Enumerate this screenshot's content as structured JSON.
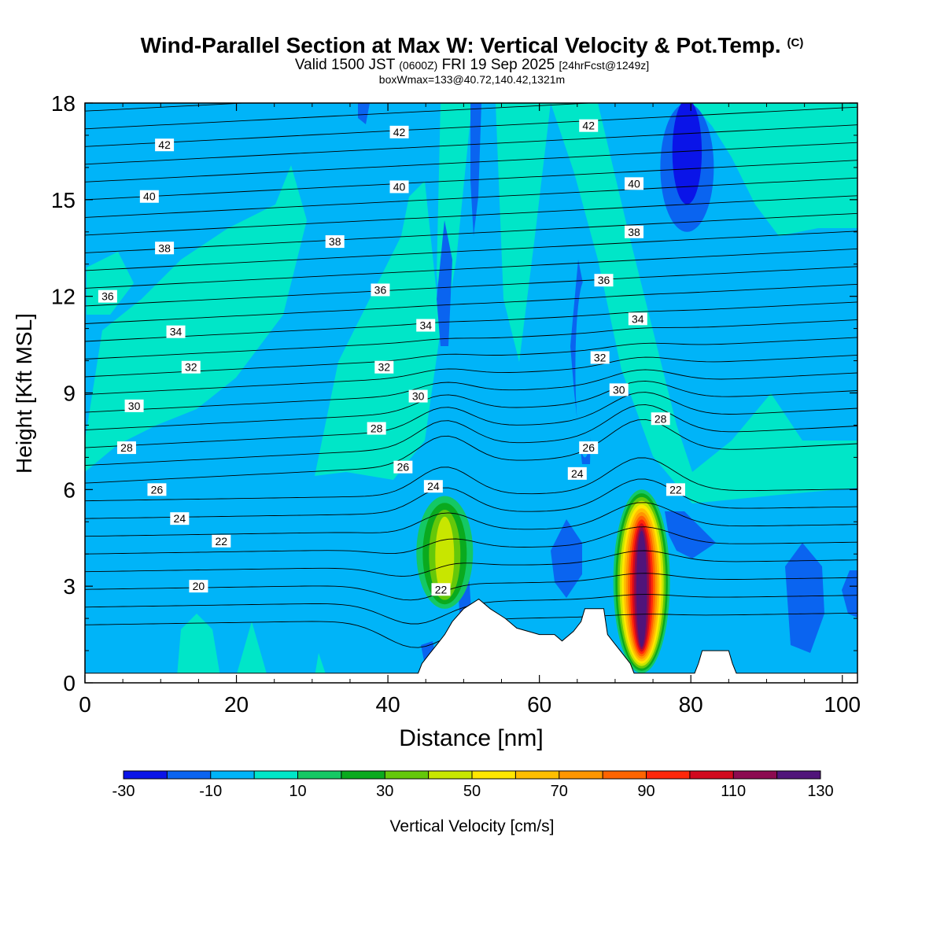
{
  "header": {
    "title_main": "Wind-Parallel Section at Max W: Vertical Velocity & Pot.Temp.",
    "title_unit": "(C)",
    "valid_prefix": "Valid 1500 JST",
    "valid_zulu": "(0600Z)",
    "valid_date": "FRI 19 Sep 2025",
    "forecast": "[24hrFcst@1249z]",
    "boxinfo": "boxWmax=133@40.72,140.42,1321m"
  },
  "colorbar": {
    "label": "Vertical Velocity [cm/s]",
    "ticks": [
      "-30",
      "-10",
      "10",
      "30",
      "50",
      "70",
      "90",
      "110",
      "130"
    ],
    "colors": [
      "#0a14e8",
      "#0a64f0",
      "#00b4f8",
      "#00e6c8",
      "#14c864",
      "#0aaa1e",
      "#64c80a",
      "#c8e600",
      "#ffe600",
      "#ffbe00",
      "#ff9600",
      "#ff6400",
      "#ff280a",
      "#d20a1e",
      "#8c0a50",
      "#50147a"
    ]
  },
  "chart_data": {
    "type": "heatmap",
    "xlabel": "Distance [nm]",
    "ylabel": "Height [Kft MSL]",
    "xlim": [
      0,
      102
    ],
    "ylim": [
      0,
      18
    ],
    "x_ticks": [
      0,
      20,
      40,
      60,
      80,
      100
    ],
    "y_ticks": [
      0,
      3,
      6,
      9,
      12,
      15,
      18
    ],
    "background_w_cms": [
      -10,
      0
    ],
    "updraft_cores": [
      {
        "x": 47.5,
        "z_bottom": 2.3,
        "z_top": 5.8,
        "w_max": 45
      },
      {
        "x": 73.5,
        "z_bottom": 0.3,
        "z_top": 6.0,
        "w_max": 133
      }
    ],
    "downdraft_cores": [
      {
        "x": 79.5,
        "z_bottom": 14.0,
        "z_top": 18.0,
        "w_min": -30
      },
      {
        "x": 66.0,
        "z_bottom": 7.0,
        "z_top": 12.5,
        "w_min": -15
      }
    ],
    "theta_contour_labels": [
      {
        "x": 15,
        "z": 3.0,
        "value": "20"
      },
      {
        "x": 18,
        "z": 4.4,
        "value": "22"
      },
      {
        "x": 47,
        "z": 2.9,
        "value": "22"
      },
      {
        "x": 12.5,
        "z": 5.1,
        "value": "24"
      },
      {
        "x": 46,
        "z": 6.1,
        "value": "24"
      },
      {
        "x": 65,
        "z": 6.5,
        "value": "24"
      },
      {
        "x": 9.5,
        "z": 6.0,
        "value": "26"
      },
      {
        "x": 42,
        "z": 6.7,
        "value": "26"
      },
      {
        "x": 66.5,
        "z": 7.3,
        "value": "26"
      },
      {
        "x": 78,
        "z": 6.0,
        "value": "22"
      },
      {
        "x": 5.5,
        "z": 7.3,
        "value": "28"
      },
      {
        "x": 38.5,
        "z": 7.9,
        "value": "28"
      },
      {
        "x": 76,
        "z": 8.2,
        "value": "28"
      },
      {
        "x": 6.5,
        "z": 8.6,
        "value": "30"
      },
      {
        "x": 44,
        "z": 8.9,
        "value": "30"
      },
      {
        "x": 70.5,
        "z": 9.1,
        "value": "30"
      },
      {
        "x": 14,
        "z": 9.8,
        "value": "32"
      },
      {
        "x": 39.5,
        "z": 9.8,
        "value": "32"
      },
      {
        "x": 68,
        "z": 10.1,
        "value": "32"
      },
      {
        "x": 12,
        "z": 10.9,
        "value": "34"
      },
      {
        "x": 45,
        "z": 11.1,
        "value": "34"
      },
      {
        "x": 73,
        "z": 11.3,
        "value": "34"
      },
      {
        "x": 3,
        "z": 12.0,
        "value": "36"
      },
      {
        "x": 39,
        "z": 12.2,
        "value": "36"
      },
      {
        "x": 68.5,
        "z": 12.5,
        "value": "36"
      },
      {
        "x": 10.5,
        "z": 13.5,
        "value": "38"
      },
      {
        "x": 33,
        "z": 13.7,
        "value": "38"
      },
      {
        "x": 72.5,
        "z": 14.0,
        "value": "38"
      },
      {
        "x": 8.5,
        "z": 15.1,
        "value": "40"
      },
      {
        "x": 41.5,
        "z": 15.4,
        "value": "40"
      },
      {
        "x": 72.5,
        "z": 15.5,
        "value": "40"
      },
      {
        "x": 10.5,
        "z": 16.7,
        "value": "42"
      },
      {
        "x": 41.5,
        "z": 17.1,
        "value": "42"
      },
      {
        "x": 66.5,
        "z": 17.3,
        "value": "42"
      }
    ],
    "terrain": [
      [
        0,
        0.3
      ],
      [
        44,
        0.3
      ],
      [
        44.5,
        0.6
      ],
      [
        45.5,
        0.9
      ],
      [
        46.5,
        1.2
      ],
      [
        47.5,
        1.5
      ],
      [
        48.5,
        1.9
      ],
      [
        50,
        2.3
      ],
      [
        52,
        2.6
      ],
      [
        53.5,
        2.3
      ],
      [
        55.5,
        2.0
      ],
      [
        57,
        1.7
      ],
      [
        60,
        1.5
      ],
      [
        62,
        1.5
      ],
      [
        63,
        1.3
      ],
      [
        64.5,
        1.6
      ],
      [
        65.5,
        1.9
      ],
      [
        66,
        2.3
      ],
      [
        68.5,
        2.3
      ],
      [
        69,
        1.5
      ],
      [
        70,
        1.2
      ],
      [
        71,
        0.9
      ],
      [
        72,
        0.6
      ],
      [
        72.5,
        0.3
      ],
      [
        80.5,
        0.3
      ],
      [
        81,
        0.6
      ],
      [
        81.5,
        1.0
      ],
      [
        85,
        1.0
      ],
      [
        85.5,
        0.6
      ],
      [
        86,
        0.3
      ],
      [
        102,
        0.3
      ]
    ]
  }
}
